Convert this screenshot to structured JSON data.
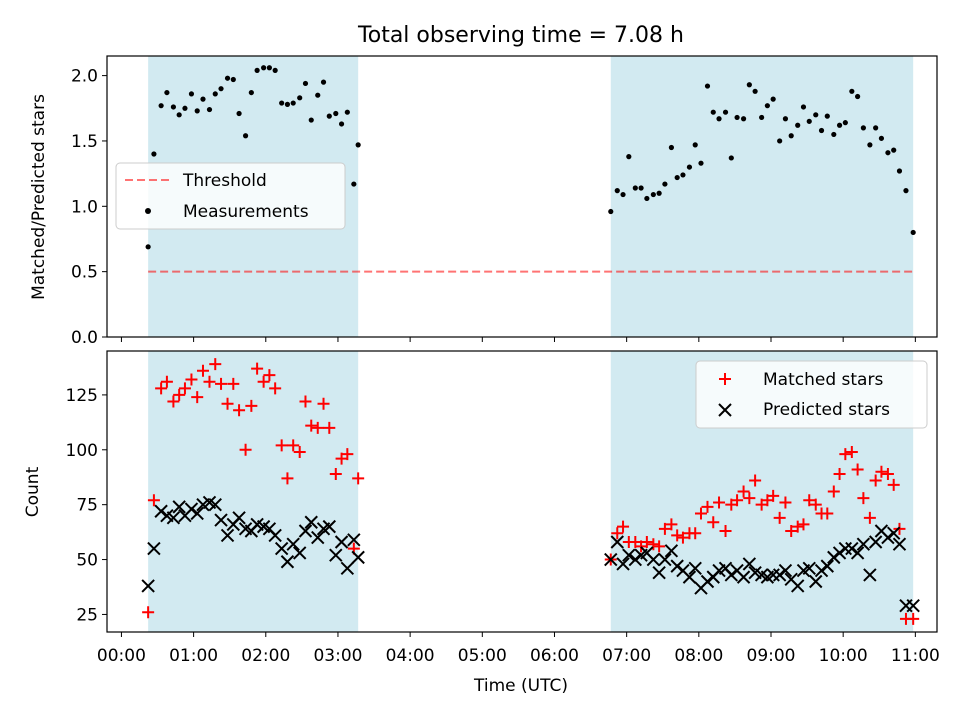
{
  "figure_title": "Total observing time = 7.08 h",
  "colors": {
    "shade": "#add8e6",
    "threshold": "#ff0000",
    "measurements": "#000000",
    "matched": "#ff0000",
    "predicted": "#000000"
  },
  "chart_data": [
    {
      "type": "scatter",
      "panel": "top",
      "ylabel": "Matched/Predicted stars",
      "xlabel": "",
      "ylim": [
        0,
        2.15
      ],
      "yticks": [
        0.0,
        0.5,
        1.0,
        1.5,
        2.0
      ],
      "ytick_labels": [
        "0.0",
        "0.5",
        "1.0",
        "1.5",
        "2.0"
      ],
      "xlim_hours": [
        -0.2,
        11.3
      ],
      "legend": {
        "placement": "center-left",
        "entries": [
          {
            "label": "Threshold",
            "marker": "dashed-line"
          },
          {
            "label": "Measurements",
            "marker": "dot"
          }
        ]
      },
      "shaded_intervals_hours": [
        [
          0.37,
          3.28
        ],
        [
          6.78,
          10.97
        ]
      ],
      "threshold": {
        "name": "Threshold",
        "x_range_hours": [
          0.37,
          10.97
        ],
        "y": 0.5
      },
      "series": [
        {
          "name": "Measurements",
          "x_hours": [
            0.37,
            0.45,
            0.55,
            0.63,
            0.72,
            0.8,
            0.88,
            0.97,
            1.05,
            1.13,
            1.22,
            1.3,
            1.38,
            1.47,
            1.55,
            1.63,
            1.72,
            1.8,
            1.88,
            1.97,
            2.05,
            2.13,
            2.22,
            2.3,
            2.38,
            2.47,
            2.55,
            2.63,
            2.72,
            2.8,
            2.88,
            2.97,
            3.05,
            3.13,
            3.22,
            3.28,
            6.78,
            6.87,
            6.95,
            7.03,
            7.12,
            7.2,
            7.28,
            7.37,
            7.45,
            7.53,
            7.62,
            7.7,
            7.78,
            7.87,
            7.95,
            8.03,
            8.12,
            8.2,
            8.28,
            8.37,
            8.45,
            8.53,
            8.62,
            8.7,
            8.78,
            8.87,
            8.95,
            9.03,
            9.12,
            9.2,
            9.28,
            9.37,
            9.45,
            9.53,
            9.62,
            9.7,
            9.78,
            9.87,
            9.95,
            10.03,
            10.12,
            10.2,
            10.28,
            10.37,
            10.45,
            10.53,
            10.62,
            10.7,
            10.78,
            10.87,
            10.97
          ],
          "y": [
            0.69,
            1.4,
            1.77,
            1.87,
            1.76,
            1.7,
            1.75,
            1.86,
            1.73,
            1.82,
            1.74,
            1.86,
            1.9,
            1.98,
            1.97,
            1.71,
            1.54,
            1.87,
            2.04,
            2.06,
            2.06,
            2.04,
            1.79,
            1.78,
            1.79,
            1.83,
            1.94,
            1.66,
            1.85,
            1.95,
            1.69,
            1.71,
            1.63,
            1.72,
            1.17,
            1.47,
            0.96,
            1.12,
            1.09,
            1.38,
            1.14,
            1.14,
            1.06,
            1.09,
            1.1,
            1.17,
            1.45,
            1.22,
            1.24,
            1.3,
            1.47,
            1.33,
            1.92,
            1.72,
            1.67,
            1.72,
            1.37,
            1.68,
            1.67,
            1.93,
            1.88,
            1.68,
            1.77,
            1.82,
            1.5,
            1.67,
            1.54,
            1.62,
            1.76,
            1.65,
            1.7,
            1.58,
            1.69,
            1.55,
            1.62,
            1.64,
            1.88,
            1.84,
            1.6,
            1.47,
            1.6,
            1.52,
            1.41,
            1.43,
            1.27,
            1.12,
            0.8
          ]
        }
      ]
    },
    {
      "type": "scatter",
      "panel": "bottom",
      "ylabel": "Count",
      "xlabel": "Time (UTC)",
      "ylim": [
        17,
        145
      ],
      "yticks": [
        25,
        50,
        75,
        100,
        125
      ],
      "ytick_labels": [
        "25",
        "50",
        "75",
        "100",
        "125"
      ],
      "xlim_hours": [
        -0.2,
        11.3
      ],
      "xticks_hours": [
        0,
        1,
        2,
        3,
        4,
        5,
        6,
        7,
        8,
        9,
        10,
        11
      ],
      "xtick_labels": [
        "00:00",
        "01:00",
        "02:00",
        "03:00",
        "04:00",
        "05:00",
        "06:00",
        "07:00",
        "08:00",
        "09:00",
        "10:00",
        "11:00"
      ],
      "legend": {
        "placement": "top-right",
        "entries": [
          {
            "label": "Matched stars",
            "marker": "plus"
          },
          {
            "label": "Predicted stars",
            "marker": "x"
          }
        ]
      },
      "shaded_intervals_hours": [
        [
          0.37,
          3.28
        ],
        [
          6.78,
          10.97
        ]
      ],
      "series": [
        {
          "name": "Matched stars",
          "x_hours": [
            0.37,
            0.45,
            0.55,
            0.63,
            0.72,
            0.8,
            0.88,
            0.97,
            1.05,
            1.13,
            1.22,
            1.3,
            1.38,
            1.47,
            1.55,
            1.63,
            1.72,
            1.8,
            1.88,
            1.97,
            2.05,
            2.13,
            2.22,
            2.3,
            2.38,
            2.47,
            2.55,
            2.63,
            2.72,
            2.8,
            2.88,
            2.97,
            3.05,
            3.13,
            3.22,
            3.28,
            6.78,
            6.87,
            6.95,
            7.03,
            7.12,
            7.2,
            7.28,
            7.37,
            7.45,
            7.53,
            7.62,
            7.7,
            7.78,
            7.87,
            7.95,
            8.03,
            8.12,
            8.2,
            8.28,
            8.37,
            8.45,
            8.53,
            8.62,
            8.7,
            8.78,
            8.87,
            8.95,
            9.03,
            9.12,
            9.2,
            9.28,
            9.37,
            9.45,
            9.53,
            9.62,
            9.7,
            9.78,
            9.87,
            9.95,
            10.03,
            10.12,
            10.2,
            10.28,
            10.37,
            10.45,
            10.53,
            10.62,
            10.7,
            10.78,
            10.87,
            10.97
          ],
          "y": [
            26,
            77,
            128,
            131,
            122,
            125,
            128,
            132,
            124,
            136,
            131,
            139,
            130,
            121,
            130,
            118,
            100,
            120,
            137,
            131,
            134,
            128,
            102,
            87,
            102,
            99,
            122,
            111,
            110,
            121,
            110,
            89,
            96,
            98,
            55,
            87,
            50,
            62,
            65,
            58,
            58,
            56,
            58,
            57,
            56,
            64,
            66,
            61,
            60,
            62,
            62,
            71,
            74,
            67,
            76,
            63,
            75,
            77,
            81,
            78,
            86,
            75,
            77,
            79,
            69,
            76,
            63,
            65,
            66,
            77,
            75,
            71,
            71,
            81,
            89,
            98,
            99,
            91,
            78,
            69,
            86,
            90,
            89,
            84,
            64,
            23,
            23
          ]
        },
        {
          "name": "Predicted stars",
          "x_hours": [
            0.37,
            0.45,
            0.55,
            0.63,
            0.72,
            0.8,
            0.88,
            0.97,
            1.05,
            1.13,
            1.22,
            1.3,
            1.38,
            1.47,
            1.55,
            1.63,
            1.72,
            1.8,
            1.88,
            1.97,
            2.05,
            2.13,
            2.22,
            2.3,
            2.38,
            2.47,
            2.55,
            2.63,
            2.72,
            2.8,
            2.88,
            2.97,
            3.05,
            3.13,
            3.22,
            3.28,
            6.78,
            6.87,
            6.95,
            7.03,
            7.12,
            7.2,
            7.28,
            7.37,
            7.45,
            7.53,
            7.62,
            7.7,
            7.78,
            7.87,
            7.95,
            8.03,
            8.12,
            8.2,
            8.28,
            8.37,
            8.45,
            8.53,
            8.62,
            8.7,
            8.78,
            8.87,
            8.95,
            9.03,
            9.12,
            9.2,
            9.28,
            9.37,
            9.45,
            9.53,
            9.62,
            9.7,
            9.78,
            9.87,
            9.95,
            10.03,
            10.12,
            10.2,
            10.28,
            10.37,
            10.45,
            10.53,
            10.62,
            10.7,
            10.78,
            10.87,
            10.97
          ],
          "y": [
            38,
            55,
            72,
            70,
            69,
            74,
            70,
            73,
            71,
            75,
            76,
            75,
            68,
            61,
            66,
            69,
            64,
            63,
            66,
            65,
            64,
            61,
            55,
            49,
            57,
            53,
            63,
            67,
            60,
            64,
            65,
            52,
            58,
            46,
            59,
            51,
            50,
            58,
            48,
            52,
            50,
            52,
            53,
            50,
            44,
            50,
            54,
            47,
            45,
            42,
            46,
            37,
            40,
            42,
            45,
            46,
            43,
            45,
            42,
            48,
            44,
            43,
            42,
            43,
            43,
            45,
            41,
            38,
            45,
            46,
            40,
            45,
            47,
            51,
            53,
            55,
            55,
            53,
            57,
            43,
            58,
            63,
            60,
            62,
            57,
            29,
            29
          ]
        }
      ]
    }
  ]
}
